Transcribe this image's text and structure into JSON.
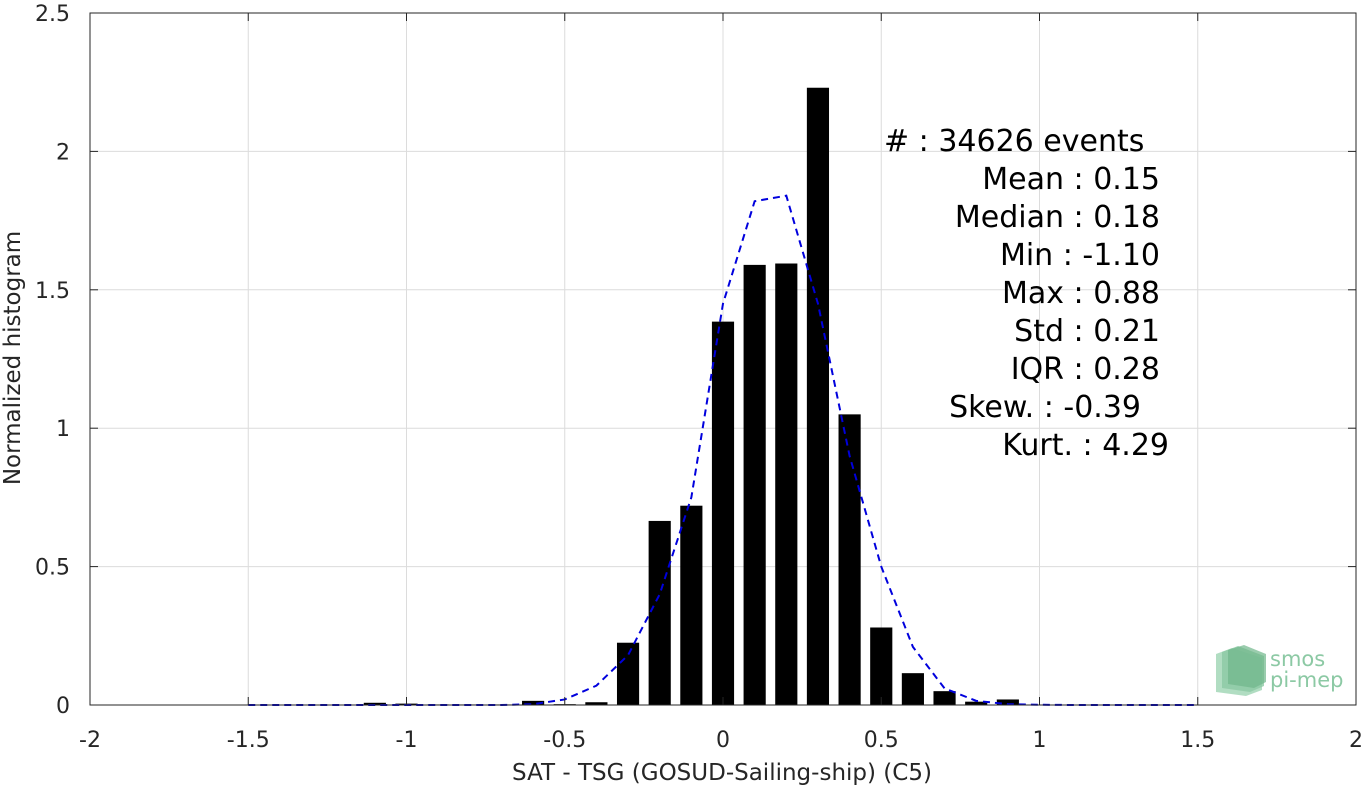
{
  "chart_data": {
    "type": "bar",
    "xlabel": "SAT - TSG (GOSUD-Sailing-ship) (C5)",
    "ylabel": "Normalized histogram",
    "xlim": [
      -2,
      2
    ],
    "ylim": [
      0,
      2.5
    ],
    "grid": true,
    "x_ticks": [
      -2,
      -1.5,
      -1,
      -0.5,
      0,
      0.5,
      1,
      1.5,
      2
    ],
    "x_tick_labels": [
      "-2",
      "-1.5",
      "-1",
      "-0.5",
      "0",
      "0.5",
      "1",
      "1.5",
      "2"
    ],
    "y_ticks": [
      0,
      0.5,
      1,
      1.5,
      2,
      2.5
    ],
    "y_tick_labels": [
      "0",
      "0.5",
      "1",
      "1.5",
      "2",
      "2.5"
    ],
    "bar_width": 0.07,
    "bars": {
      "x": [
        -1.1,
        -1.0,
        -0.9,
        -0.8,
        -0.7,
        -0.6,
        -0.5,
        -0.4,
        -0.3,
        -0.2,
        -0.1,
        0.0,
        0.1,
        0.2,
        0.3,
        0.4,
        0.5,
        0.6,
        0.7,
        0.8,
        0.9
      ],
      "values": [
        0.008,
        0.005,
        0.002,
        0.002,
        0.002,
        0.015,
        0.003,
        0.01,
        0.225,
        0.665,
        0.72,
        1.385,
        1.59,
        1.595,
        2.23,
        1.05,
        0.28,
        0.115,
        0.05,
        0.012,
        0.02
      ],
      "color": "#000000"
    },
    "fit": {
      "x": [
        -1.5,
        -1.4,
        -1.3,
        -1.2,
        -1.1,
        -1.0,
        -0.9,
        -0.8,
        -0.7,
        -0.6,
        -0.5,
        -0.4,
        -0.3,
        -0.2,
        -0.1,
        0.0,
        0.1,
        0.2,
        0.3,
        0.4,
        0.5,
        0.6,
        0.7,
        0.8,
        0.9,
        1.0,
        1.1,
        1.2,
        1.3,
        1.4,
        1.5
      ],
      "values": [
        0,
        0,
        0,
        0,
        0,
        0,
        0,
        0,
        0,
        0.003,
        0.02,
        0.07,
        0.18,
        0.4,
        0.75,
        1.45,
        1.82,
        1.84,
        1.45,
        0.9,
        0.5,
        0.21,
        0.06,
        0.015,
        0.003,
        0.001,
        0,
        0,
        0,
        0,
        0
      ],
      "color": "#0000dd",
      "style": "dashed"
    },
    "stats": [
      "#  : 34626 events",
      "Mean : 0.15",
      "Median : 0.18",
      "Min : -1.10",
      "Max : 0.88",
      "Std : 0.21",
      "IQR : 0.28",
      "Skew. : -0.39",
      "Kurt. : 4.29"
    ]
  },
  "logo": {
    "line1": "smos",
    "line2": "pi-mep",
    "color": "#8cc9a4",
    "icon": "smos-pimep-logo-icon"
  }
}
